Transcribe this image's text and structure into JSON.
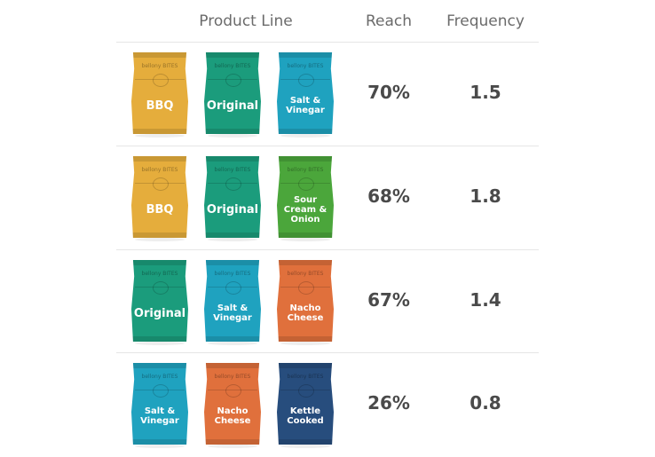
{
  "chart_data": {
    "type": "table",
    "columns": [
      "Product Line",
      "Reach",
      "Frequency"
    ],
    "brand": "bellony BITES",
    "flavor_colors": {
      "BBQ": "#e5ad3c",
      "Original": "#1b9c7c",
      "Salt & Vinegar": "#1fa2bf",
      "Sour Cream & Onion": "#4ba63b",
      "Nacho Cheese": "#e0703c",
      "Kettle Cooked": "#274d7d"
    },
    "rows": [
      {
        "products": [
          "BBQ",
          "Original",
          "Salt & Vinegar"
        ],
        "reach": "70%",
        "frequency": "1.5"
      },
      {
        "products": [
          "BBQ",
          "Original",
          "Sour Cream & Onion"
        ],
        "reach": "68%",
        "frequency": "1.8"
      },
      {
        "products": [
          "Original",
          "Salt & Vinegar",
          "Nacho Cheese"
        ],
        "reach": "67%",
        "frequency": "1.4"
      },
      {
        "products": [
          "Salt & Vinegar",
          "Nacho Cheese",
          "Kettle Cooked"
        ],
        "reach": "26%",
        "frequency": "0.8"
      }
    ]
  }
}
